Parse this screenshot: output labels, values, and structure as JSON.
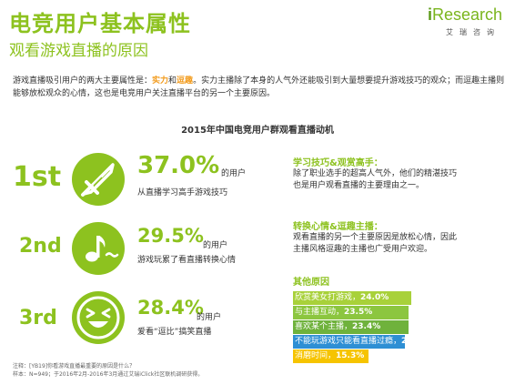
{
  "header": {
    "title": "电竞用户基本属性",
    "subtitle": "观看游戏直播的原因"
  },
  "logo": {
    "brand_i": "i",
    "brand_rest": "Research",
    "sub": "艾瑞咨询"
  },
  "intro": {
    "part1": "游戏直播吸引用户的两大主要属性是：",
    "hl1": "实力",
    "and": "和",
    "hl2": "逗趣",
    "part2": "。实力主播除了本身的人气外还能吸引到大量想要提升游戏技巧的观众；而逗趣主播则能够放松观众的心情，这也是电竞用户关注直播平台的另一个主要原因。"
  },
  "chart_data": {
    "type": "bar",
    "title": "2015年中国电竞用户群观看直播动机",
    "top_reasons": [
      {
        "rank": "1st",
        "value": 37.0,
        "value_label": "37.0%",
        "suffix": "的用户",
        "description": "从直播学习高手游戏技巧",
        "icon": "sword-icon"
      },
      {
        "rank": "2nd",
        "value": 29.5,
        "value_label": "29.5%",
        "suffix": "的用户",
        "description": "游戏玩累了看直播转换心情",
        "icon": "music-note-icon"
      },
      {
        "rank": "3rd",
        "value": 28.4,
        "value_label": "28.4%",
        "suffix": "的用户",
        "description": "爱看“逗比”搞笑直播",
        "icon": "laughing-face-icon"
      }
    ],
    "highlights": [
      {
        "heading": "学习技巧&观赏高手：",
        "lines": [
          "除了职业选手的超高人气外，他们的精湛技巧",
          "也是用户观看直播的主要理由之一。"
        ]
      },
      {
        "heading": "转换心情&逗趣主播：",
        "lines": [
          "观看直播的另一个主要原因是放松心情，因此",
          "主播风格逗趣的主播也广受用户欢迎。"
        ]
      }
    ],
    "other": {
      "title": "其他原因",
      "categories": [
        "欣赏美女打游戏",
        "与主播互动",
        "喜欢某个主播",
        "不能玩游戏只能看直播过瘾",
        "消磨时间"
      ],
      "values": [
        24.0,
        23.5,
        23.4,
        22.7,
        15.3
      ],
      "value_labels": [
        "24.0%",
        "23.5%",
        "23.4%",
        "22.7%",
        "15.3%"
      ],
      "label_separator": "，"
    }
  },
  "colors": {
    "brand_green": "#8dc21f",
    "highlight_orange": "#f29a1a",
    "bar_colors": [
      "#a8d13a",
      "#8cc63f",
      "#6fb23c",
      "#2e8fd4",
      "#f6c400"
    ]
  },
  "notes": {
    "line1": "注释：[YB19]你看游戏直播最重要的原因是什么？",
    "line2": "样本：N=949；于2016年2月-2016年3月通过艾瑞iClick社区联机调研获得。"
  }
}
